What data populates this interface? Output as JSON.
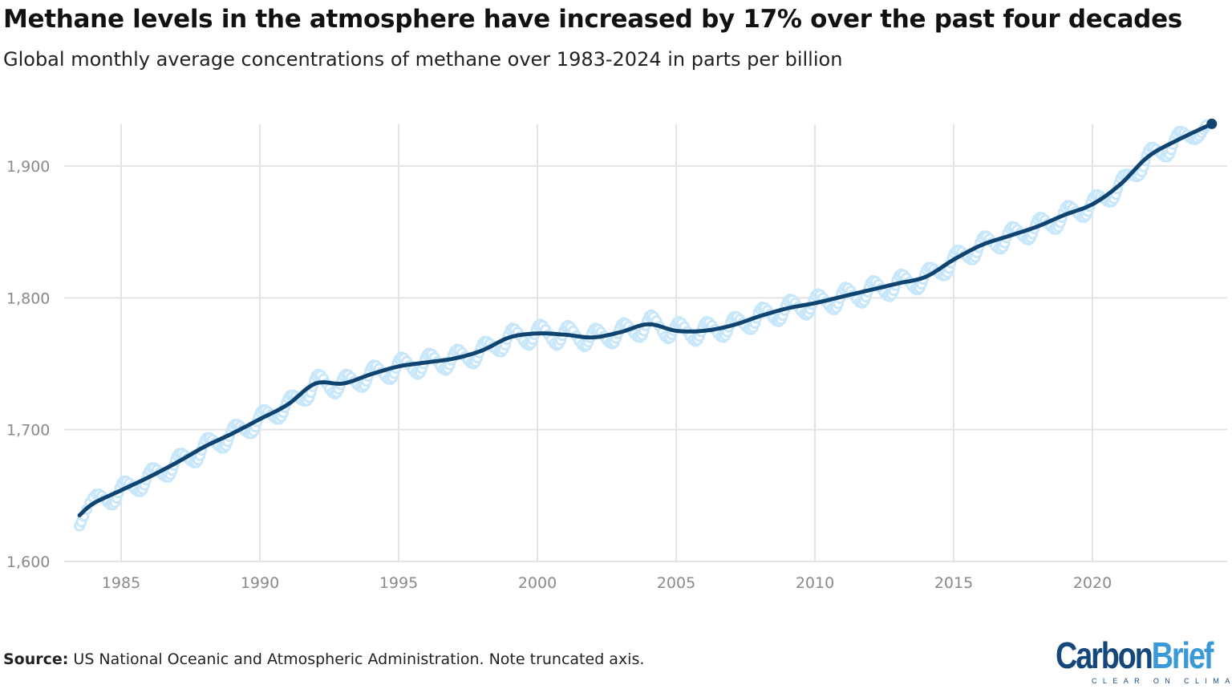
{
  "title": "Methane levels in the atmosphere have increased by 17% over the past four decades",
  "subtitle": "Global monthly average concentrations of methane over 1983-2024 in parts per billion",
  "source_label": "Source:",
  "source_text": " US National Oceanic and Atmospheric Administration. Note truncated axis.",
  "logo": {
    "carbon": "Carbon",
    "brief": "Brief",
    "tagline": "CLEAR ON CLIMATE",
    "carbon_color": "#15477a",
    "brief_color": "#3a9ad9"
  },
  "chart_data": {
    "type": "line",
    "title": "Methane levels in the atmosphere have increased by 17% over the past four decades",
    "xlabel": "",
    "ylabel": "",
    "xlim": [
      1983.2,
      2024.9
    ],
    "ylim": [
      1600,
      1935
    ],
    "grid": true,
    "x_ticks": [
      1985,
      1990,
      1995,
      2000,
      2005,
      2010,
      2015,
      2020
    ],
    "x_tick_labels": [
      "1985",
      "1990",
      "1995",
      "2000",
      "2005",
      "2010",
      "2015",
      "2020"
    ],
    "y_ticks": [
      1600,
      1700,
      1800,
      1900
    ],
    "y_tick_labels": [
      "1,600",
      "1,700",
      "1,800",
      "1,900"
    ],
    "series": [
      {
        "role": "monthly",
        "color": "#c9e7fa",
        "x": [
          1983.5,
          1984.1,
          1984.7,
          1985.1,
          1985.7,
          1986.1,
          1986.7,
          1987.1,
          1987.7,
          1988.1,
          1988.7,
          1989.1,
          1989.7,
          1990.1,
          1990.7,
          1991.1,
          1991.7,
          1992.1,
          1992.7,
          1993.1,
          1993.7,
          1994.1,
          1994.7,
          1995.1,
          1995.7,
          1996.1,
          1996.7,
          1997.1,
          1997.7,
          1998.1,
          1998.7,
          1999.1,
          1999.7,
          2000.1,
          2000.7,
          2001.1,
          2001.7,
          2002.1,
          2002.7,
          2003.1,
          2003.7,
          2004.1,
          2004.7,
          2005.1,
          2005.7,
          2006.1,
          2006.7,
          2007.1,
          2007.7,
          2008.1,
          2008.7,
          2009.1,
          2009.7,
          2010.1,
          2010.7,
          2011.1,
          2011.7,
          2012.1,
          2012.7,
          2013.1,
          2013.7,
          2014.1,
          2014.7,
          2015.1,
          2015.7,
          2016.1,
          2016.7,
          2017.1,
          2017.7,
          2018.1,
          2018.7,
          2019.1,
          2019.7,
          2020.1,
          2020.7,
          2021.1,
          2021.7,
          2022.1,
          2022.7,
          2023.1,
          2023.7,
          2024.1
        ],
        "values": [
          1627,
          1651,
          1643,
          1661,
          1653,
          1671,
          1664,
          1682,
          1675,
          1694,
          1686,
          1704,
          1697,
          1715,
          1708,
          1726,
          1722,
          1742,
          1727,
          1742,
          1732,
          1749,
          1738,
          1755,
          1742,
          1758,
          1745,
          1761,
          1750,
          1767,
          1759,
          1777,
          1764,
          1780,
          1764,
          1779,
          1763,
          1777,
          1765,
          1781,
          1770,
          1787,
          1769,
          1782,
          1767,
          1782,
          1770,
          1786,
          1776,
          1793,
          1782,
          1799,
          1787,
          1803,
          1791,
          1808,
          1796,
          1813,
          1801,
          1818,
          1806,
          1823,
          1817,
          1836,
          1829,
          1847,
          1837,
          1854,
          1844,
          1861,
          1852,
          1870,
          1861,
          1878,
          1873,
          1893,
          1893,
          1914,
          1907,
          1926,
          1920,
          1931
        ]
      },
      {
        "role": "trend",
        "color": "#0f4471",
        "x": [
          1983.5,
          1984,
          1985,
          1986,
          1987,
          1988,
          1989,
          1990,
          1991,
          1992,
          1993,
          1994,
          1995,
          1996,
          1997,
          1998,
          1999,
          2000,
          2001,
          2002,
          2003,
          2004,
          2005,
          2006,
          2007,
          2008,
          2009,
          2010,
          2011,
          2012,
          2013,
          2014,
          2015,
          2016,
          2017,
          2018,
          2019,
          2020,
          2021,
          2022,
          2023,
          2024.3
        ],
        "values": [
          1635,
          1644,
          1654,
          1664,
          1675,
          1687,
          1697,
          1708,
          1719,
          1735,
          1735,
          1742,
          1748,
          1751,
          1754,
          1760,
          1770,
          1773,
          1772,
          1770,
          1774,
          1780,
          1775,
          1775,
          1779,
          1786,
          1792,
          1796,
          1801,
          1806,
          1811,
          1816,
          1829,
          1840,
          1847,
          1854,
          1863,
          1871,
          1886,
          1907,
          1919,
          1932
        ]
      }
    ]
  }
}
